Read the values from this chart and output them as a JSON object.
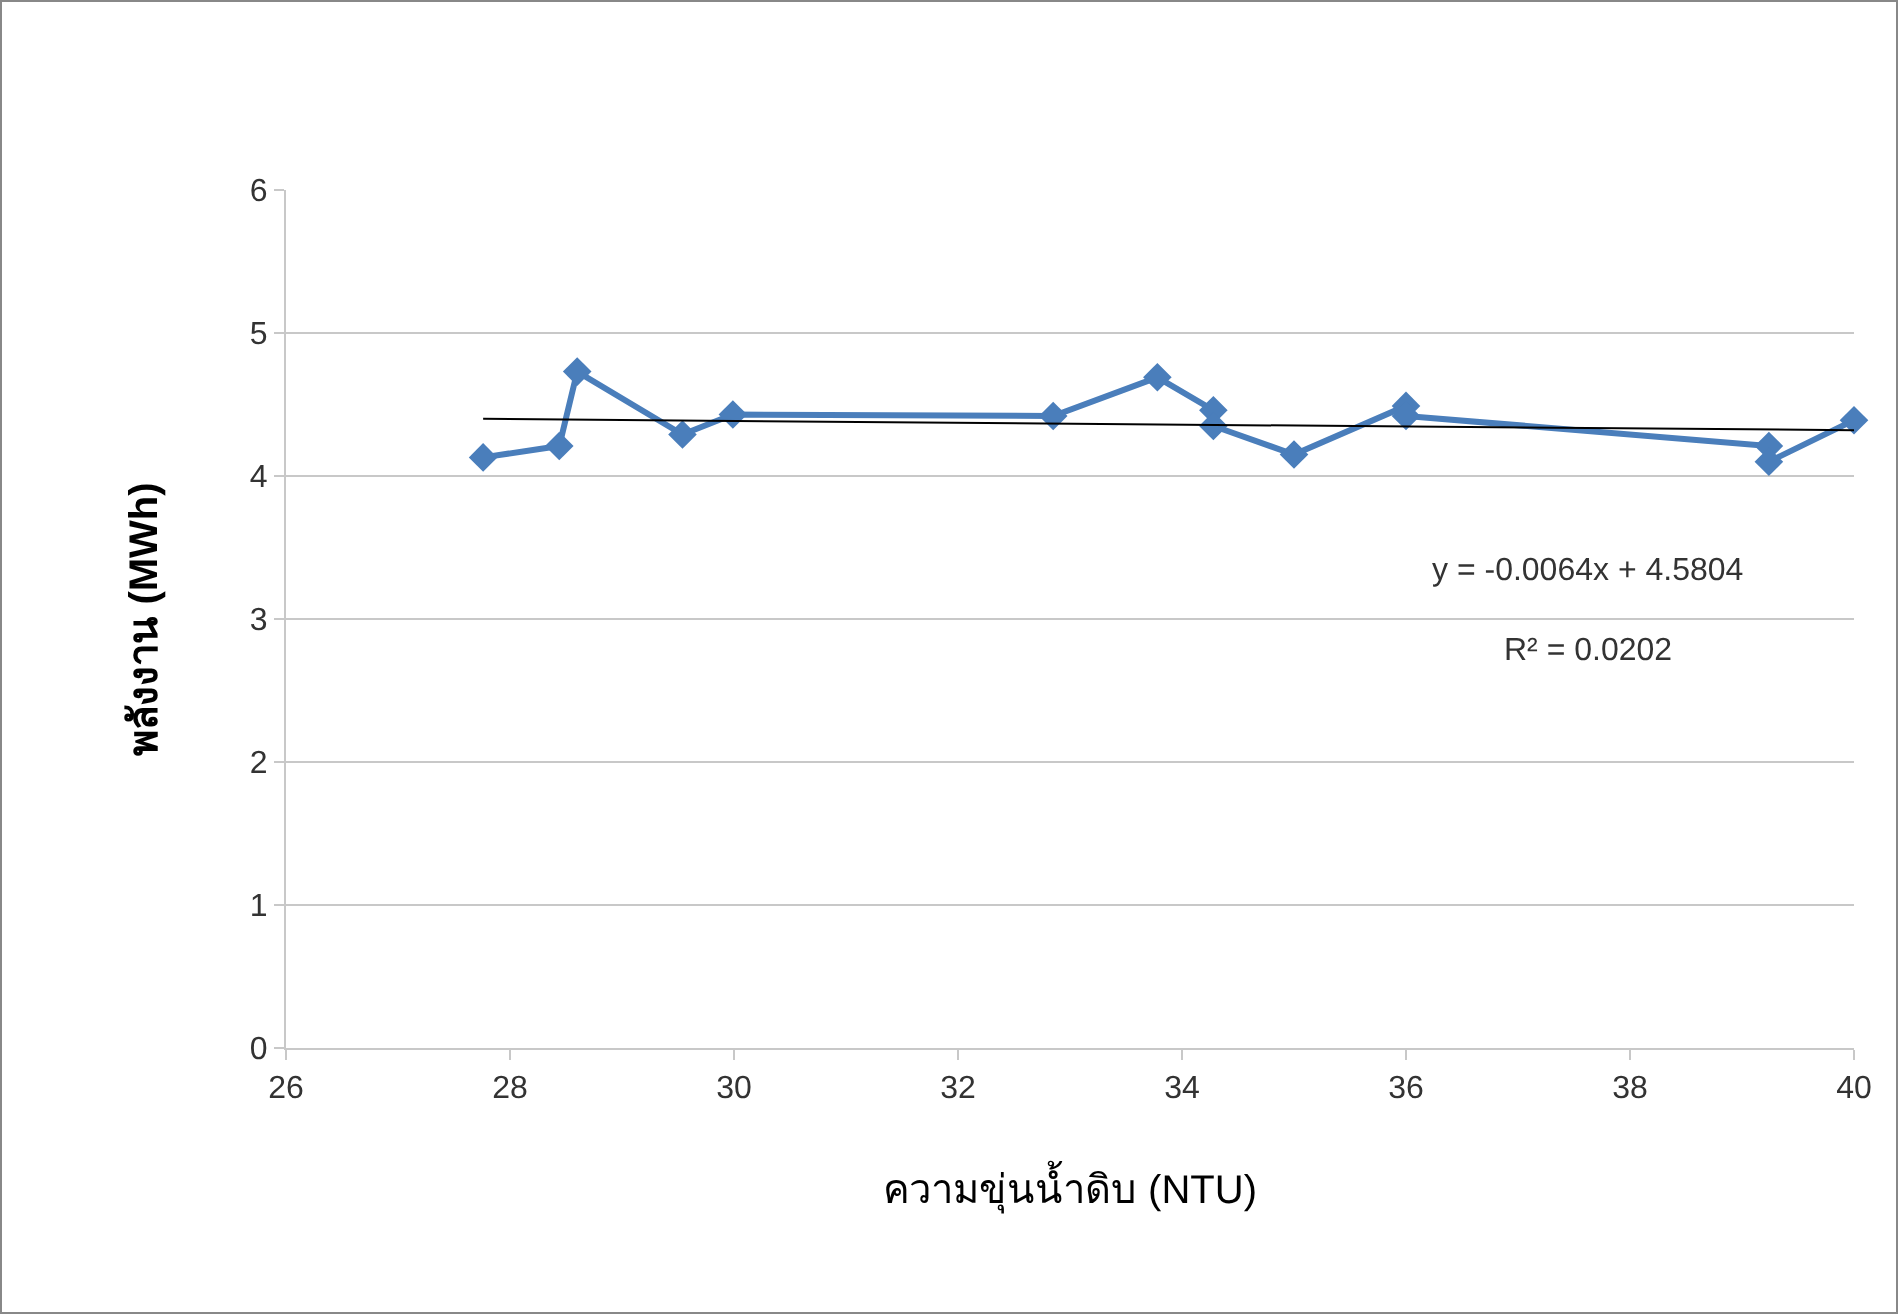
{
  "chart_data": {
    "type": "line",
    "xlabel": "ความขุ่นน้ำดิบ (NTU)",
    "ylabel": "พลังงาน (MWh)",
    "xlim": [
      26,
      40
    ],
    "xticks": [
      26,
      28,
      30,
      32,
      34,
      36,
      38,
      40
    ],
    "ylim": [
      0,
      6
    ],
    "yticks": [
      0,
      1,
      2,
      3,
      4,
      5,
      6
    ],
    "grid": "y",
    "marker": "diamond",
    "line_style": "solid",
    "x": [
      27.76,
      28.44,
      28.6,
      29.54,
      29.99,
      32.85,
      33.78,
      34.28,
      34.28,
      35.0,
      36.0,
      36.0,
      39.24,
      39.24,
      40.0
    ],
    "series": [
      {
        "color": "#4a7ebb",
        "values": [
          4.13,
          4.21,
          4.73,
          4.29,
          4.43,
          4.42,
          4.69,
          4.46,
          4.35,
          4.15,
          4.49,
          4.42,
          4.21,
          4.1,
          4.39
        ]
      },
      {
        "type": "line",
        "color": "#000000",
        "marker": "none",
        "x": [
          27.76,
          40.0
        ],
        "values": [
          4.4,
          4.32
        ]
      }
    ],
    "annotations": [
      "y = -0.0064x + 4.5804",
      "R² = 0.0202"
    ]
  }
}
